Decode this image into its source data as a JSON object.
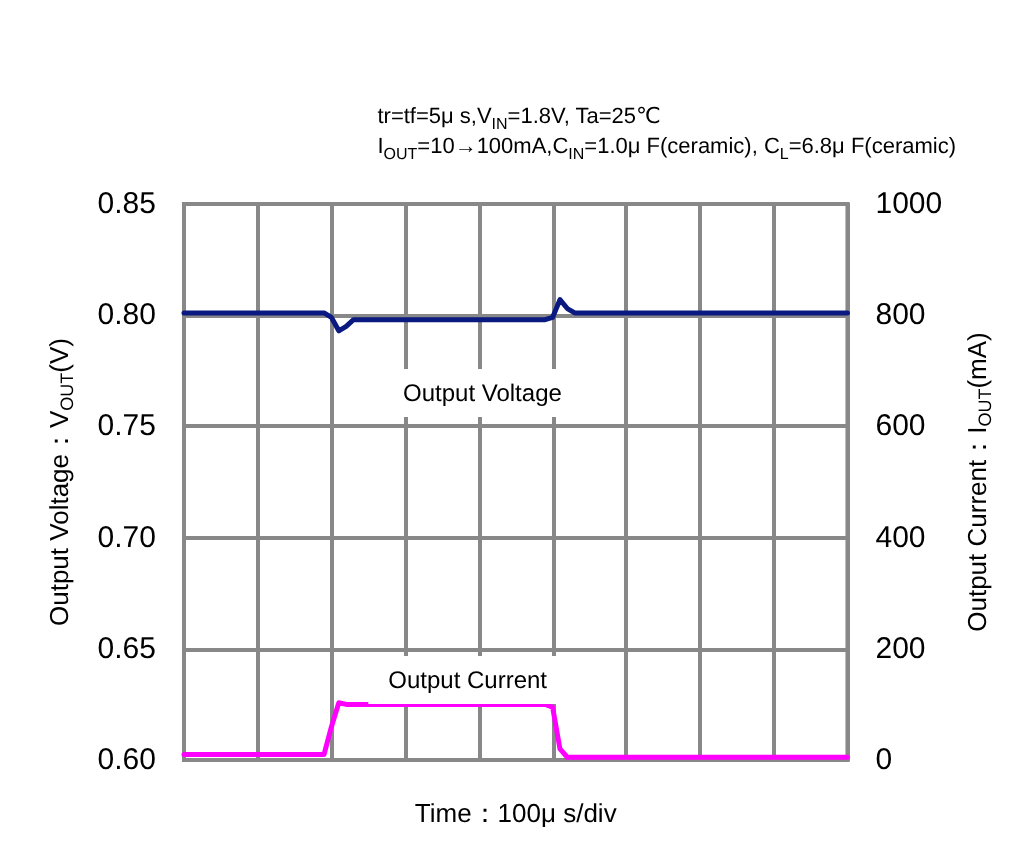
{
  "chart_data": {
    "type": "line",
    "subtitle": "tr=tf=5μ s,V$_{IN}$=1.8V, Ta=25℃\nI$_{OUT}$=10→100mA,C$_{IN}$=1.0μ F(ceramic), C$_{L}$=6.8μ F(ceramic)",
    "xlabel": "Time：100μ s/div",
    "ylabel": "Output Voltage：V$_{OUT}$(V)",
    "y2label": "Output Current：I$_{OUT}$(mA)",
    "categories": [
      null,
      null,
      null,
      null,
      null,
      null,
      null,
      null,
      null,
      null,
      null,
      null,
      null,
      null,
      null,
      null,
      null,
      null,
      null,
      null,
      null,
      null,
      null,
      null,
      null,
      null,
      null,
      null,
      null,
      null,
      null,
      null,
      null,
      null,
      null,
      null,
      null,
      null,
      null,
      null,
      null,
      null,
      null,
      null,
      null,
      null,
      null,
      null,
      null,
      null,
      null,
      null,
      null,
      null,
      null,
      null,
      null,
      null,
      null,
      null,
      null,
      null,
      null,
      null,
      null,
      null,
      null,
      null,
      null,
      null,
      null,
      null,
      null,
      null,
      null,
      null,
      null,
      null,
      null,
      null,
      null,
      null,
      null,
      null,
      null,
      null,
      null,
      null,
      null,
      null,
      null
    ],
    "series": [
      {
        "name": "Output Voltage",
        "color": "#0a1a80",
        "values": [
          0.801,
          0.801,
          0.801,
          0.801,
          0.801,
          0.801,
          0.801,
          0.801,
          0.801,
          0.801,
          0.801,
          0.801,
          0.801,
          0.801,
          0.801,
          0.801,
          0.801,
          0.801,
          0.801,
          0.801,
          0.799,
          0.793,
          0.795,
          0.798,
          0.798,
          0.798,
          0.798,
          0.798,
          0.798,
          0.798,
          0.798,
          0.798,
          0.798,
          0.798,
          0.798,
          0.798,
          0.798,
          0.798,
          0.798,
          0.798,
          0.798,
          0.798,
          0.798,
          0.798,
          0.798,
          0.798,
          0.798,
          0.798,
          0.798,
          0.798,
          0.799,
          0.807,
          0.803,
          0.801,
          0.801,
          0.801,
          0.801,
          0.801,
          0.801,
          0.801,
          0.801,
          0.801,
          0.801,
          0.801,
          0.801,
          0.801,
          0.801,
          0.801,
          0.801,
          0.801,
          0.801,
          0.801,
          0.801,
          0.801,
          0.801,
          0.801,
          0.801,
          0.801,
          0.801,
          0.801,
          0.801,
          0.801,
          0.801,
          0.801,
          0.801,
          0.801,
          0.801,
          0.801,
          0.801,
          0.801,
          0.801
        ]
      },
      {
        "name": "Output Current",
        "color": "#ff00ff",
        "axis": "y2",
        "values": [
          10,
          10,
          10,
          10,
          10,
          10,
          10,
          10,
          10,
          10,
          10,
          10,
          10,
          10,
          10,
          10,
          10,
          10,
          10,
          10,
          60,
          103,
          100,
          100,
          100,
          100,
          100,
          100,
          100,
          100,
          100,
          100,
          100,
          100,
          100,
          100,
          100,
          100,
          100,
          100,
          100,
          100,
          100,
          100,
          100,
          100,
          100,
          100,
          100,
          100,
          95,
          20,
          5,
          5,
          5,
          5,
          5,
          5,
          5,
          5,
          5,
          5,
          5,
          5,
          5,
          5,
          5,
          5,
          5,
          5,
          5,
          5,
          5,
          5,
          5,
          5,
          5,
          5,
          5,
          5,
          5,
          5,
          5,
          5,
          5,
          5,
          5,
          5,
          5,
          5,
          5
        ]
      }
    ],
    "ylim": [
      0.6,
      0.85
    ],
    "yticks": [
      {
        "value": 0.6,
        "label": "0.60"
      },
      0.65,
      {
        "value": 0.7,
        "label": "0.70"
      },
      0.75,
      {
        "value": 0.8,
        "label": "0.80"
      },
      0.85
    ],
    "y2lim": [
      0,
      1000
    ],
    "y2ticks": [
      0,
      200,
      400,
      600,
      800,
      1000
    ],
    "grid": true,
    "marker": "none",
    "line_style": "solid"
  }
}
